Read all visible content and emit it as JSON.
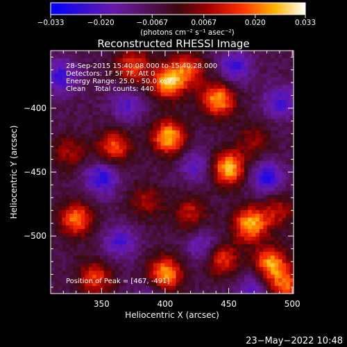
{
  "chart_data": {
    "type": "heatmap",
    "title": "Reconstructed RHESSI Image",
    "xlabel": "Heliocentric X (arcsec)",
    "ylabel": "Heliocentric Y (arcsec)",
    "x_range": [
      310,
      501
    ],
    "y_range": [
      -545,
      -355
    ],
    "x_ticks": [
      350,
      400,
      450,
      500
    ],
    "y_ticks": [
      -400,
      -450,
      -500
    ],
    "x_tick_labels": [
      "350",
      "400",
      "450",
      "500"
    ],
    "y_tick_labels": [
      "−400",
      "−450",
      "−500"
    ],
    "colorbar": {
      "range": [
        -0.033,
        0.033
      ],
      "ticks": [
        -0.033,
        -0.02,
        -0.0067,
        0.0067,
        0.02,
        0.033
      ],
      "tick_labels": [
        "−0.033",
        "−0.020",
        "−0.0067",
        "0.0067",
        "0.020",
        "0.033"
      ],
      "units_label": "(photons cm⁻² s⁻¹ asec⁻²)"
    },
    "annotations": [
      "28-Sep-2015 15:40:08.000 to 15:40:28.000",
      "Detectors: 1F 5F 7F, Att 0",
      "Energy Range: 25.0 - 50.0 keV",
      "Clean    Total counts: 440."
    ],
    "peak_label": "Position of Peak = [467, -491]",
    "sources": [
      {
        "x": 375,
        "y": -367,
        "v": 0.022
      },
      {
        "x": 402,
        "y": -380,
        "v": 0.03
      },
      {
        "x": 418,
        "y": -370,
        "v": 0.022
      },
      {
        "x": 442,
        "y": -393,
        "v": 0.031
      },
      {
        "x": 360,
        "y": -430,
        "v": 0.024
      },
      {
        "x": 403,
        "y": -423,
        "v": 0.032
      },
      {
        "x": 450,
        "y": -447,
        "v": 0.033
      },
      {
        "x": 470,
        "y": -425,
        "v": 0.012
      },
      {
        "x": 325,
        "y": -435,
        "v": 0.014
      },
      {
        "x": 330,
        "y": -487,
        "v": 0.027
      },
      {
        "x": 385,
        "y": -473,
        "v": 0.014
      },
      {
        "x": 420,
        "y": -482,
        "v": 0.017
      },
      {
        "x": 467,
        "y": -491,
        "v": 0.032
      },
      {
        "x": 488,
        "y": -480,
        "v": 0.016
      },
      {
        "x": 345,
        "y": -533,
        "v": 0.022
      },
      {
        "x": 400,
        "y": -530,
        "v": 0.032
      },
      {
        "x": 445,
        "y": -518,
        "v": 0.022
      },
      {
        "x": 483,
        "y": -522,
        "v": 0.03
      },
      {
        "x": 495,
        "y": -540,
        "v": 0.024
      },
      {
        "x": 365,
        "y": -505,
        "v": -0.016
      },
      {
        "x": 350,
        "y": -455,
        "v": -0.02
      },
      {
        "x": 425,
        "y": -445,
        "v": -0.014
      },
      {
        "x": 480,
        "y": -455,
        "v": -0.02
      },
      {
        "x": 455,
        "y": -368,
        "v": -0.018
      },
      {
        "x": 370,
        "y": -398,
        "v": -0.014
      },
      {
        "x": 430,
        "y": -508,
        "v": -0.014
      },
      {
        "x": 490,
        "y": -395,
        "v": -0.016
      },
      {
        "x": 318,
        "y": -375,
        "v": -0.018
      },
      {
        "x": 470,
        "y": -540,
        "v": -0.014
      },
      {
        "x": 390,
        "y": -545,
        "v": -0.01
      }
    ]
  },
  "footer": {
    "date": "23−May−2022 10:48"
  }
}
